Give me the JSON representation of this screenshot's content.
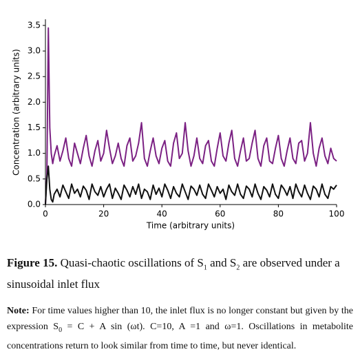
{
  "chart_data": {
    "type": "line",
    "xlabel": "Time (arbitrary units)",
    "ylabel": "Concentration (arbitrary units)",
    "xlim": [
      0,
      100
    ],
    "ylim": [
      0,
      3.62
    ],
    "xticks": [
      0,
      20,
      40,
      60,
      80,
      100
    ],
    "yticks": [
      {
        "value": 0,
        "label": "0.0"
      },
      0.5,
      {
        "value": 1,
        "label": "1.0"
      },
      1.5,
      {
        "value": 2,
        "label": "2.0"
      },
      2.5,
      {
        "value": 3,
        "label": "3.0"
      },
      3.5
    ],
    "x": [
      0,
      0.5,
      1,
      1.5,
      2,
      2.5,
      3,
      4,
      5,
      6,
      7,
      8,
      9,
      10,
      11,
      12,
      13,
      14,
      15,
      16,
      17,
      18,
      19,
      20,
      21,
      22,
      23,
      24,
      25,
      26,
      27,
      28,
      29,
      30,
      31,
      32,
      33,
      34,
      35,
      36,
      37,
      38,
      39,
      40,
      41,
      42,
      43,
      44,
      45,
      46,
      47,
      48,
      49,
      50,
      51,
      52,
      53,
      54,
      55,
      56,
      57,
      58,
      59,
      60,
      61,
      62,
      63,
      64,
      65,
      66,
      67,
      68,
      69,
      70,
      71,
      72,
      73,
      74,
      75,
      76,
      77,
      78,
      79,
      80,
      81,
      82,
      83,
      84,
      85,
      86,
      87,
      88,
      89,
      90,
      91,
      92,
      93,
      94,
      95,
      96,
      97,
      98,
      99,
      100
    ],
    "series": [
      {
        "color": "#7b2183",
        "values": [
          0,
          0.6,
          3.45,
          1.5,
          1.0,
          0.8,
          0.95,
          1.15,
          0.85,
          1.05,
          1.3,
          0.9,
          0.75,
          1.2,
          1.0,
          0.8,
          1.1,
          1.35,
          0.95,
          0.75,
          1.05,
          1.25,
          0.85,
          1.0,
          1.45,
          1.1,
          0.8,
          0.95,
          1.2,
          0.9,
          0.75,
          1.15,
          1.3,
          0.85,
          0.95,
          1.2,
          1.6,
          0.9,
          0.75,
          1.05,
          1.3,
          0.95,
          0.8,
          1.1,
          1.25,
          0.85,
          0.75,
          1.2,
          1.4,
          0.9,
          1.0,
          1.6,
          1.05,
          0.75,
          0.95,
          1.3,
          0.9,
          0.8,
          1.15,
          1.25,
          0.85,
          0.75,
          1.1,
          1.4,
          0.95,
          0.85,
          1.2,
          1.45,
          0.9,
          0.75,
          1.05,
          1.3,
          0.85,
          0.9,
          1.2,
          1.45,
          0.9,
          0.75,
          1.15,
          1.3,
          0.85,
          0.8,
          1.1,
          1.35,
          0.9,
          0.75,
          1.05,
          1.3,
          0.9,
          0.8,
          1.2,
          1.25,
          0.85,
          1.0,
          1.6,
          1.0,
          0.75,
          1.1,
          1.3,
          0.95,
          0.8,
          1.1,
          0.9,
          0.85
        ]
      },
      {
        "color": "#111111",
        "values": [
          0,
          0.5,
          0.75,
          0.3,
          0.1,
          0.05,
          0.2,
          0.3,
          0.15,
          0.38,
          0.25,
          0.12,
          0.4,
          0.22,
          0.3,
          0.15,
          0.36,
          0.28,
          0.1,
          0.4,
          0.25,
          0.18,
          0.35,
          0.15,
          0.3,
          0.4,
          0.12,
          0.32,
          0.22,
          0.1,
          0.38,
          0.28,
          0.15,
          0.35,
          0.2,
          0.4,
          0.12,
          0.3,
          0.25,
          0.1,
          0.38,
          0.2,
          0.32,
          0.15,
          0.4,
          0.28,
          0.12,
          0.35,
          0.22,
          0.15,
          0.4,
          0.25,
          0.1,
          0.36,
          0.3,
          0.18,
          0.38,
          0.2,
          0.12,
          0.4,
          0.28,
          0.15,
          0.35,
          0.22,
          0.3,
          0.1,
          0.38,
          0.25,
          0.18,
          0.4,
          0.2,
          0.12,
          0.36,
          0.3,
          0.15,
          0.4,
          0.22,
          0.1,
          0.35,
          0.28,
          0.15,
          0.4,
          0.2,
          0.12,
          0.38,
          0.3,
          0.18,
          0.35,
          0.12,
          0.4,
          0.25,
          0.15,
          0.38,
          0.22,
          0.1,
          0.36,
          0.3,
          0.15,
          0.4,
          0.2,
          0.12,
          0.35,
          0.3,
          0.38
        ]
      }
    ]
  },
  "caption": {
    "label": "Figure 15.",
    "parts": [
      "Quasi-chaotic oscillations of S",
      "1",
      " and S",
      "2",
      " are observed under a sinusoidal inlet flux"
    ]
  },
  "note": {
    "label": "Note:",
    "parts": [
      "For time values higher than 10, the inlet flux is no longer constant but given by the expression S",
      "0",
      " = C + A sin (ωt). C=10, A =1 and ω=1. Oscillations in metabolite concentrations return to look similar from time to time, but never identical."
    ]
  }
}
